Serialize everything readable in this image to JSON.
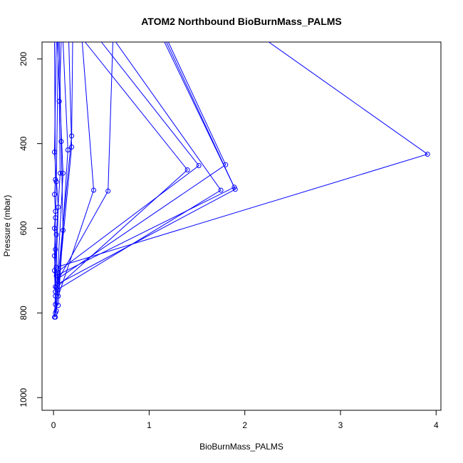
{
  "chart_data": {
    "type": "line",
    "title": "ATOM2 Northbound BioBurnMass_PALMS",
    "xlabel": "BioBurnMass_PALMS",
    "ylabel": "Pressure (mbar)",
    "xlim": [
      -0.12,
      4.05
    ],
    "ylim": [
      1030,
      160
    ],
    "y_inverted": true,
    "x_ticks": [
      0,
      1,
      2,
      3,
      4
    ],
    "y_ticks": [
      200,
      400,
      600,
      800,
      1000
    ],
    "grid": false,
    "legend": "none",
    "line_color": "#0000ff",
    "series": [
      {
        "points": [
          [
            2.25,
            160
          ],
          [
            3.91,
            425
          ],
          [
            0.03,
            692
          ]
        ]
      },
      {
        "points": [
          [
            1.18,
            160
          ],
          [
            1.89,
            503
          ],
          [
            0.03,
            712
          ]
        ]
      },
      {
        "points": [
          [
            1.16,
            160
          ],
          [
            1.9,
            508
          ],
          [
            0.04,
            732
          ]
        ]
      },
      {
        "points": [
          [
            1.2,
            160
          ],
          [
            1.8,
            450
          ],
          [
            0.04,
            720
          ]
        ]
      },
      {
        "points": [
          [
            0.65,
            160
          ],
          [
            1.75,
            510
          ],
          [
            0.04,
            745
          ]
        ]
      },
      {
        "points": [
          [
            0.5,
            160
          ],
          [
            1.52,
            452
          ],
          [
            0.03,
            705
          ]
        ]
      },
      {
        "points": [
          [
            0.33,
            160
          ],
          [
            1.4,
            462
          ],
          [
            0.03,
            740
          ]
        ]
      },
      {
        "points": [
          [
            0.3,
            160
          ],
          [
            0.42,
            510
          ],
          [
            0.05,
            760
          ]
        ]
      },
      {
        "points": [
          [
            0.62,
            160
          ],
          [
            0.57,
            512
          ],
          [
            0.04,
            725
          ]
        ]
      },
      {
        "points": [
          [
            0.2,
            160
          ],
          [
            0.19,
            382
          ],
          [
            0.02,
            780
          ]
        ]
      },
      {
        "points": [
          [
            0.16,
            160
          ],
          [
            0.19,
            408
          ],
          [
            0.02,
            810
          ]
        ]
      },
      {
        "points": [
          [
            0.1,
            160
          ],
          [
            0.15,
            415
          ],
          [
            0.05,
            782
          ]
        ]
      },
      {
        "points": [
          [
            0.06,
            160
          ],
          [
            0.08,
            395
          ],
          [
            0.1,
            605
          ],
          [
            0.03,
            795
          ]
        ]
      },
      {
        "points": [
          [
            0.04,
            160
          ],
          [
            0.1,
            470
          ],
          [
            0.02,
            800
          ]
        ]
      },
      {
        "points": [
          [
            0.03,
            160
          ],
          [
            0.01,
            420
          ],
          [
            0.05,
            550
          ],
          [
            0.01,
            810
          ]
        ]
      },
      {
        "points": [
          [
            0.01,
            160
          ],
          [
            0.02,
            485
          ],
          [
            0.01,
            520
          ],
          [
            0.02,
            560
          ],
          [
            0.01,
            600
          ],
          [
            0.02,
            650
          ],
          [
            0.01,
            700
          ],
          [
            0.02,
            760
          ]
        ]
      },
      {
        "points": [
          [
            0.08,
            160
          ],
          [
            0.06,
            300
          ],
          [
            0.07,
            470
          ],
          [
            0.03,
            615
          ],
          [
            0.02,
            738
          ]
        ]
      },
      {
        "points": [
          [
            0.05,
            160
          ],
          [
            0.03,
            490
          ],
          [
            0.02,
            575
          ],
          [
            0.01,
            665
          ],
          [
            0.02,
            750
          ]
        ]
      }
    ]
  }
}
